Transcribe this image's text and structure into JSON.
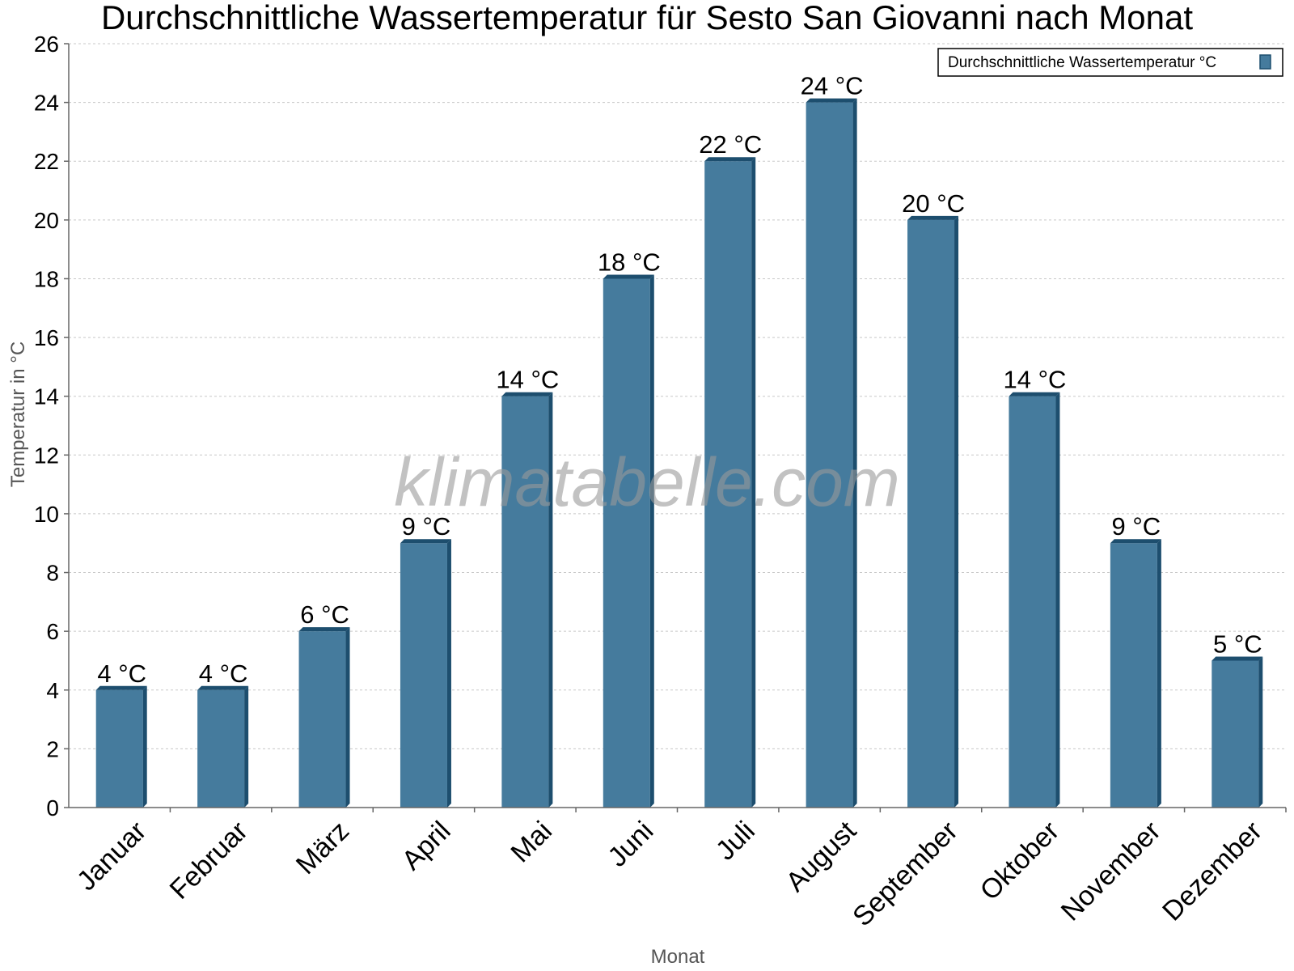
{
  "chart_data": {
    "type": "bar",
    "title": "Durchschnittliche Wassertemperatur für Sesto San Giovanni nach Monat",
    "xlabel": "Monat",
    "ylabel": "Temperatur in °C",
    "categories": [
      "Januar",
      "Februar",
      "März",
      "April",
      "Mai",
      "Juni",
      "Juli",
      "August",
      "September",
      "Oktober",
      "November",
      "Dezember"
    ],
    "series": [
      {
        "name": "Durchschnittliche Wassertemperatur °C",
        "values": [
          4,
          4,
          6,
          9,
          14,
          18,
          22,
          24,
          20,
          14,
          9,
          5
        ],
        "labels": [
          "4 °C",
          "4 °C",
          "6 °C",
          "9 °C",
          "14 °C",
          "18 °C",
          "22 °C",
          "24 °C",
          "20 °C",
          "14 °C",
          "9 °C",
          "5 °C"
        ]
      }
    ],
    "ylim": [
      0,
      26
    ],
    "yticks": [
      0,
      2,
      4,
      6,
      8,
      10,
      12,
      14,
      16,
      18,
      20,
      22,
      24,
      26
    ],
    "grid": true,
    "legend": "top-right",
    "colors": {
      "bar": "#457b9d",
      "bar_edge": "#1d4e6e",
      "grid": "#c8c8c8",
      "axis": "#666666"
    },
    "watermark": "klimatabelle.com"
  }
}
